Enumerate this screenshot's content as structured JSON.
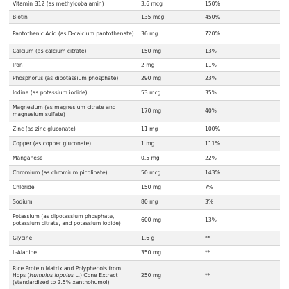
{
  "nutrients": [
    {
      "name": "Vitamin B12 (as methylcobalamin)",
      "amount": "3.6 mcg",
      "dv": "150%"
    },
    {
      "name": "Biotin",
      "amount": "135 mcg",
      "dv": "450%"
    },
    {
      "name": "Pantothenic Acid (as D-calcium pantothenate)",
      "amount": "36 mg",
      "dv": "720%"
    },
    {
      "name": "Calcium (as calcium citrate)",
      "amount": "150 mg",
      "dv": "13%"
    },
    {
      "name": "Iron",
      "amount": "2 mg",
      "dv": "11%"
    },
    {
      "name": "Phosphorus (as dipotassium phosphate)",
      "amount": "290 mg",
      "dv": "23%"
    },
    {
      "name": "Iodine (as potassium iodide)",
      "amount": "53 mcg",
      "dv": "35%"
    },
    {
      "name": "Magnesium (as magnesium citrate and magnesium sulfate)",
      "amount": "170 mg",
      "dv": "40%"
    },
    {
      "name": "Zinc (as zinc gluconate)",
      "amount": "11 mg",
      "dv": "100%"
    },
    {
      "name": "Copper (as copper gluconate)",
      "amount": "1 mg",
      "dv": "111%"
    },
    {
      "name": "Manganese",
      "amount": "0.5 mg",
      "dv": "22%"
    },
    {
      "name": "Chromium (as chromium picolinate)",
      "amount": "50 mcg",
      "dv": "143%"
    },
    {
      "name": "Chloride",
      "amount": "150 mg",
      "dv": "7%"
    },
    {
      "name": "Sodium",
      "amount": "80 mg",
      "dv": "3%"
    },
    {
      "name": "Potassium (as dipotassium phosphate, potassium citrate, and potassium iodide)",
      "amount": "600 mg",
      "dv": "13%"
    },
    {
      "name": "Glycine",
      "amount": "1.6 g",
      "dv": "**"
    },
    {
      "name": "L-Alanine",
      "amount": "350 mg",
      "dv": "**"
    }
  ],
  "last_row": {
    "name_before_italic": "Rice Protein Matrix and Polyphenols from Hops (",
    "name_italic": "Humulus lupulus",
    "name_after_italic": " L.) Cone Extract (standardized to 2.5% xanthohumol)",
    "amount": "250 mg",
    "dv": "**"
  }
}
